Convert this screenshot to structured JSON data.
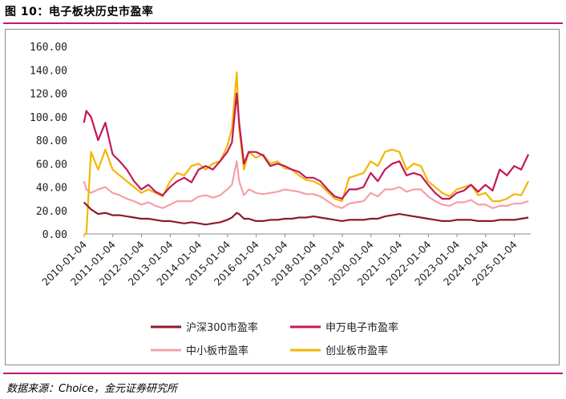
{
  "title": "图 10：电子板块历史市盈率",
  "source": "数据来源：Choice，金元证券研究所",
  "colors": {
    "hs300": "#8b1a2b",
    "sw_elec": "#c2185b",
    "smb": "#f4a0a8",
    "chinext": "#f2b705",
    "accent": "#c0177a"
  },
  "chart_data": {
    "type": "line",
    "title": "",
    "xlabel": "",
    "ylabel": "",
    "ylim": [
      0,
      160
    ],
    "yticks": [
      "0.00",
      "20.00",
      "40.00",
      "60.00",
      "80.00",
      "100.00",
      "120.00",
      "140.00",
      "160.00"
    ],
    "xticks": [
      "2010-01-04",
      "2011-01-04",
      "2012-01-04",
      "2013-01-04",
      "2014-01-04",
      "2015-01-04",
      "2016-01-04",
      "2017-01-04",
      "2018-01-04",
      "2019-01-04",
      "2020-01-04",
      "2021-01-04",
      "2022-01-04",
      "2023-01-04",
      "2024-01-04",
      "2025-01-04"
    ],
    "x": [
      "2010-01",
      "2010-02",
      "2010-04",
      "2010-07",
      "2010-10",
      "2011-01",
      "2011-04",
      "2011-07",
      "2011-10",
      "2012-01",
      "2012-04",
      "2012-07",
      "2012-10",
      "2013-01",
      "2013-04",
      "2013-07",
      "2013-10",
      "2014-01",
      "2014-04",
      "2014-07",
      "2014-10",
      "2015-01",
      "2015-03",
      "2015-05",
      "2015-06",
      "2015-08",
      "2015-10",
      "2016-01",
      "2016-04",
      "2016-07",
      "2016-10",
      "2017-01",
      "2017-04",
      "2017-07",
      "2017-10",
      "2018-01",
      "2018-04",
      "2018-07",
      "2018-10",
      "2019-01",
      "2019-04",
      "2019-07",
      "2019-10",
      "2020-01",
      "2020-04",
      "2020-07",
      "2020-10",
      "2021-01",
      "2021-04",
      "2021-07",
      "2021-10",
      "2022-01",
      "2022-04",
      "2022-07",
      "2022-10",
      "2023-01",
      "2023-04",
      "2023-07",
      "2023-10",
      "2024-01",
      "2024-04",
      "2024-07",
      "2024-10",
      "2025-01",
      "2025-04",
      "2025-07"
    ],
    "series": [
      {
        "name": "沪深300市盈率",
        "color_key": "hs300",
        "values": [
          27,
          25,
          21,
          17,
          18,
          16,
          16,
          15,
          14,
          13,
          13,
          12,
          11,
          11,
          10,
          9,
          10,
          9,
          8,
          9,
          10,
          12,
          14,
          18,
          17,
          13,
          13,
          11,
          11,
          12,
          12,
          13,
          13,
          14,
          14,
          15,
          14,
          13,
          12,
          11,
          12,
          12,
          12,
          13,
          13,
          15,
          16,
          17,
          16,
          15,
          14,
          13,
          12,
          11,
          11,
          12,
          12,
          12,
          11,
          11,
          11,
          12,
          12,
          12,
          13,
          14
        ]
      },
      {
        "name": "申万电子市盈率",
        "color_key": "sw_elec",
        "values": [
          95,
          105,
          100,
          80,
          95,
          68,
          62,
          55,
          45,
          38,
          42,
          36,
          33,
          40,
          45,
          48,
          44,
          55,
          58,
          55,
          62,
          70,
          78,
          120,
          95,
          60,
          70,
          70,
          67,
          58,
          60,
          58,
          55,
          53,
          48,
          48,
          45,
          38,
          32,
          30,
          38,
          38,
          40,
          52,
          45,
          55,
          60,
          62,
          50,
          52,
          50,
          42,
          35,
          30,
          30,
          35,
          37,
          42,
          36,
          42,
          37,
          55,
          50,
          58,
          55,
          68
        ]
      },
      {
        "name": "中小板市盈率",
        "color_key": "smb",
        "values": [
          45,
          38,
          35,
          38,
          40,
          35,
          33,
          30,
          28,
          25,
          27,
          24,
          22,
          25,
          28,
          28,
          28,
          32,
          33,
          31,
          33,
          38,
          42,
          62,
          45,
          33,
          38,
          35,
          34,
          35,
          36,
          38,
          37,
          36,
          34,
          34,
          32,
          28,
          24,
          22,
          26,
          27,
          28,
          35,
          32,
          38,
          38,
          40,
          36,
          38,
          38,
          32,
          28,
          25,
          24,
          27,
          27,
          29,
          25,
          25,
          22,
          24,
          24,
          26,
          26,
          28
        ]
      },
      {
        "name": "创业板市盈率",
        "color_key": "chinext",
        "values": [
          0,
          0,
          70,
          55,
          72,
          55,
          50,
          45,
          40,
          35,
          38,
          35,
          32,
          45,
          52,
          50,
          58,
          60,
          55,
          60,
          62,
          75,
          90,
          138,
          90,
          55,
          70,
          65,
          68,
          60,
          62,
          56,
          55,
          50,
          46,
          45,
          42,
          36,
          30,
          28,
          48,
          50,
          52,
          62,
          58,
          70,
          72,
          70,
          55,
          60,
          58,
          45,
          40,
          35,
          32,
          38,
          40,
          42,
          33,
          35,
          28,
          28,
          30,
          34,
          33,
          45
        ]
      }
    ],
    "grid": false,
    "legend_position": "bottom"
  }
}
